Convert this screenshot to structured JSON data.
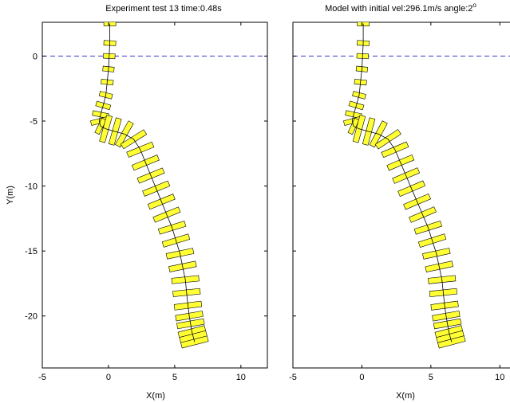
{
  "chart_data": [
    {
      "type": "line",
      "title": "Experiment test 13   time:0.48s",
      "xlabel": "X(m)",
      "ylabel": "Y(m)",
      "xlim": [
        -5,
        12
      ],
      "ylim": [
        -24,
        2.6
      ],
      "xticks": [
        "-5",
        "0",
        "5",
        "10"
      ],
      "yticks": [
        "0",
        "-5",
        "-10",
        "-15",
        "-20"
      ],
      "reference_line": {
        "y": 0,
        "style": "dashed",
        "color": "#3a3acf"
      },
      "series": [
        {
          "color": "#ffff33",
          "edge_color": "#000000",
          "x": [
            0.1,
            0.1,
            0.05,
            0.0,
            -0.1,
            -0.2,
            -0.4,
            -0.6,
            -0.7,
            -0.6,
            -0.2,
            0.5,
            1.2,
            1.9,
            2.4,
            2.8,
            3.2,
            3.6,
            4.0,
            4.4,
            4.8,
            5.1,
            5.4,
            5.6,
            5.8,
            5.9,
            6.0,
            6.1,
            6.2,
            6.3,
            6.4,
            6.5
          ],
          "y": [
            2.5,
            1.0,
            0.0,
            -1.0,
            -2.0,
            -3.0,
            -3.8,
            -4.5,
            -5.0,
            -5.4,
            -5.6,
            -5.8,
            -6.0,
            -6.4,
            -7.2,
            -8.2,
            -9.2,
            -10.2,
            -11.2,
            -12.2,
            -13.2,
            -14.2,
            -15.2,
            -16.2,
            -17.2,
            -18.2,
            -19.2,
            -20.0,
            -20.6,
            -21.2,
            -21.6,
            -22.0
          ]
        }
      ]
    },
    {
      "type": "line",
      "title_main": "Model with initial vel:296.1m/s  angle:2",
      "title_sup": "o",
      "xlabel": "X(m)",
      "ylabel": "",
      "xlim": [
        -5,
        11.2
      ],
      "ylim": [
        -24,
        2.6
      ],
      "xticks": [
        "-5",
        "0",
        "5",
        "10"
      ],
      "yticks": [],
      "reference_line": {
        "y": 0,
        "style": "dashed",
        "color": "#3a3acf"
      },
      "series": [
        {
          "color": "#ffff33",
          "edge_color": "#000000",
          "x": [
            0.1,
            0.1,
            0.05,
            0.0,
            -0.1,
            -0.2,
            -0.4,
            -0.6,
            -0.7,
            -0.6,
            -0.2,
            0.5,
            1.2,
            1.9,
            2.4,
            2.8,
            3.2,
            3.6,
            4.0,
            4.4,
            4.8,
            5.1,
            5.4,
            5.6,
            5.8,
            5.9,
            6.0,
            6.1,
            6.2,
            6.3,
            6.4,
            6.5
          ],
          "y": [
            2.5,
            1.0,
            0.0,
            -1.0,
            -2.0,
            -3.0,
            -3.8,
            -4.5,
            -5.0,
            -5.4,
            -5.6,
            -5.8,
            -6.0,
            -6.4,
            -7.2,
            -8.2,
            -9.2,
            -10.2,
            -11.2,
            -12.2,
            -13.2,
            -14.2,
            -15.2,
            -16.2,
            -17.2,
            -18.2,
            -19.2,
            -20.0,
            -20.6,
            -21.2,
            -21.6,
            -22.0
          ]
        }
      ]
    }
  ]
}
